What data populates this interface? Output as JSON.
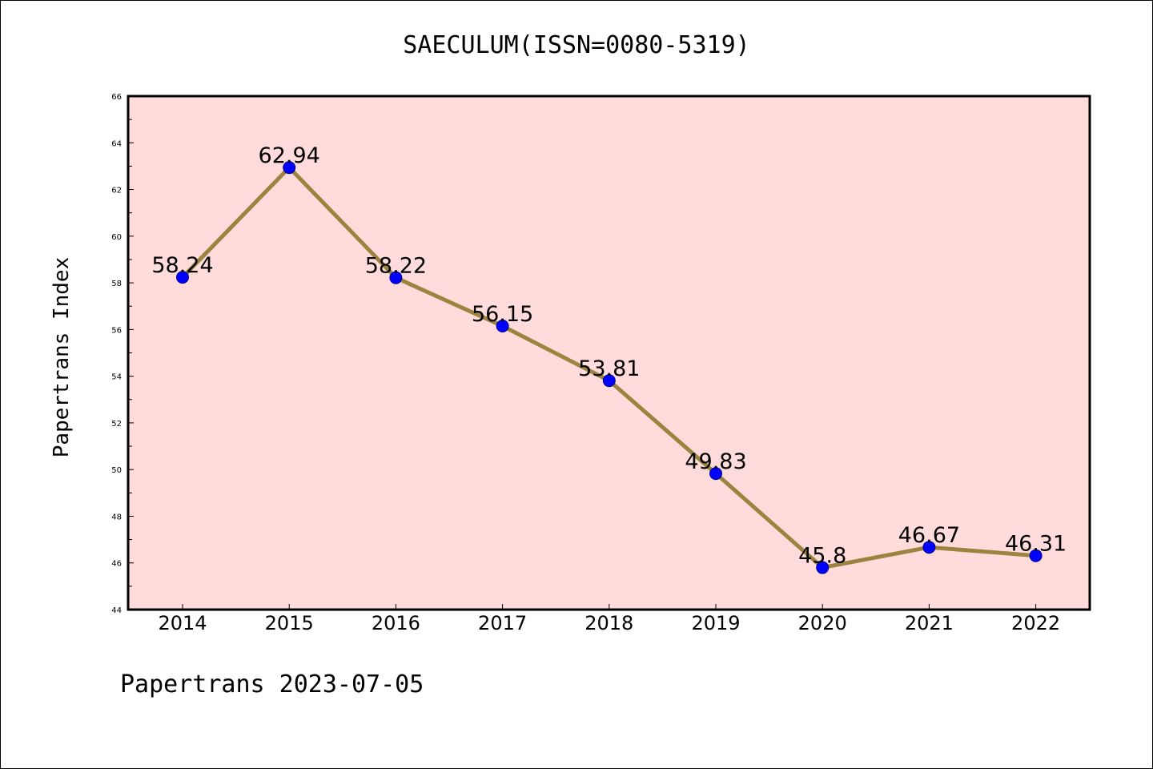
{
  "chart_data": {
    "type": "line",
    "title": "SAECULUM(ISSN=0080-5319)",
    "xlabel": "",
    "ylabel": "Papertrans Index",
    "footer": "Papertrans 2023-07-05",
    "categories": [
      "2014",
      "2015",
      "2016",
      "2017",
      "2018",
      "2019",
      "2020",
      "2021",
      "2022"
    ],
    "series": [
      {
        "values": [
          58.24,
          62.94,
          58.22,
          56.15,
          53.81,
          49.83,
          45.8,
          46.67,
          46.31
        ],
        "labels": [
          "58.24",
          "62.94",
          "58.22",
          "56.15",
          "53.81",
          "49.83",
          "45.8",
          "46.67",
          "46.31"
        ]
      }
    ],
    "ylim": [
      44,
      66
    ],
    "yticks": [
      "44",
      "46",
      "48",
      "50",
      "52",
      "54",
      "56",
      "58",
      "60",
      "62",
      "64",
      "66"
    ],
    "grid": false,
    "legend": "none",
    "colors": {
      "plot_background": "#ffdcdb",
      "line": "#9c8440",
      "marker": "#0000ff",
      "axis": "#000000"
    }
  }
}
